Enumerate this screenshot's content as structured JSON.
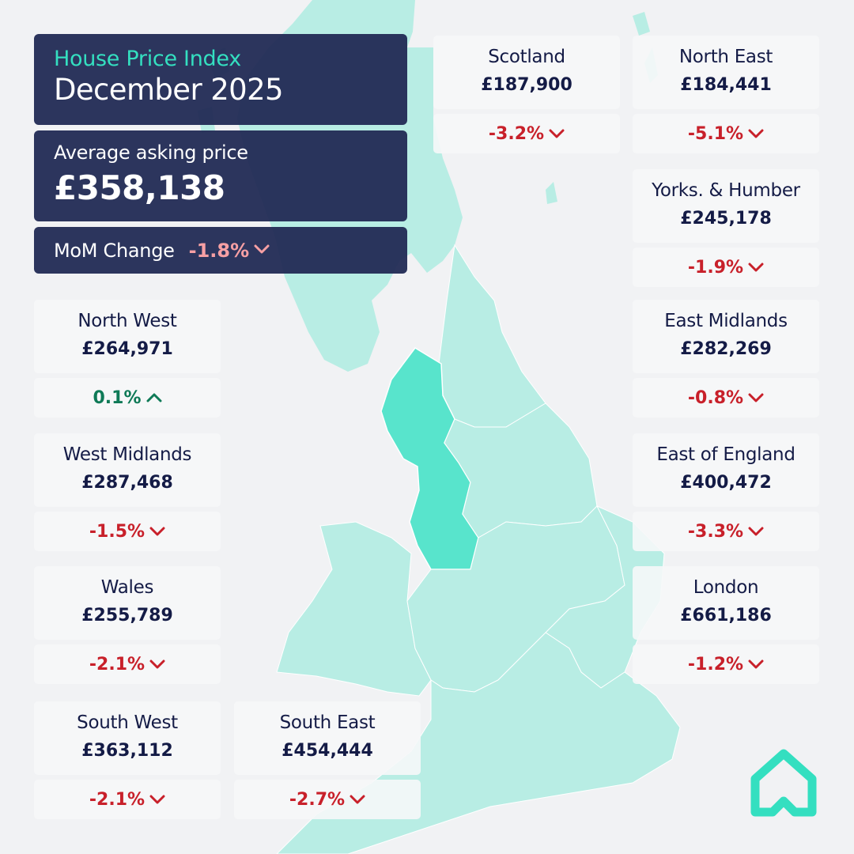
{
  "header": {
    "title": "House Price Index",
    "date": "December 2025",
    "avg_label": "Average asking price",
    "avg_value": "£358,138",
    "mom_label": "MoM Change",
    "mom_value": "-1.8%"
  },
  "colors": {
    "accent": "#34dfc0",
    "panel": "#212a54",
    "negative": "#c8202a",
    "positive": "#0f7a57",
    "map_land": "#b8ede4",
    "map_highlight": "#58e4cc"
  },
  "regions": {
    "scotland": {
      "name": "Scotland",
      "price": "£187,900",
      "change": "-3.2%",
      "direction": "down"
    },
    "north_east": {
      "name": "North East",
      "price": "£184,441",
      "change": "-5.1%",
      "direction": "down"
    },
    "yorks_humber": {
      "name": "Yorks. & Humber",
      "price": "£245,178",
      "change": "-1.9%",
      "direction": "down"
    },
    "east_midlands": {
      "name": "East Midlands",
      "price": "£282,269",
      "change": "-0.8%",
      "direction": "down"
    },
    "east_england": {
      "name": "East of England",
      "price": "£400,472",
      "change": "-3.3%",
      "direction": "down"
    },
    "london": {
      "name": "London",
      "price": "£661,186",
      "change": "-1.2%",
      "direction": "down"
    },
    "north_west": {
      "name": "North West",
      "price": "£264,971",
      "change": "0.1%",
      "direction": "up"
    },
    "west_midlands": {
      "name": "West Midlands",
      "price": "£287,468",
      "change": "-1.5%",
      "direction": "down"
    },
    "wales": {
      "name": "Wales",
      "price": "£255,789",
      "change": "-2.1%",
      "direction": "down"
    },
    "south_west": {
      "name": "South West",
      "price": "£363,112",
      "change": "-2.1%",
      "direction": "down"
    },
    "south_east": {
      "name": "South East",
      "price": "£454,444",
      "change": "-2.7%",
      "direction": "down"
    }
  },
  "icons": {
    "down": "chevron-down-icon",
    "up": "chevron-up-icon",
    "logo": "house-logo-icon"
  }
}
